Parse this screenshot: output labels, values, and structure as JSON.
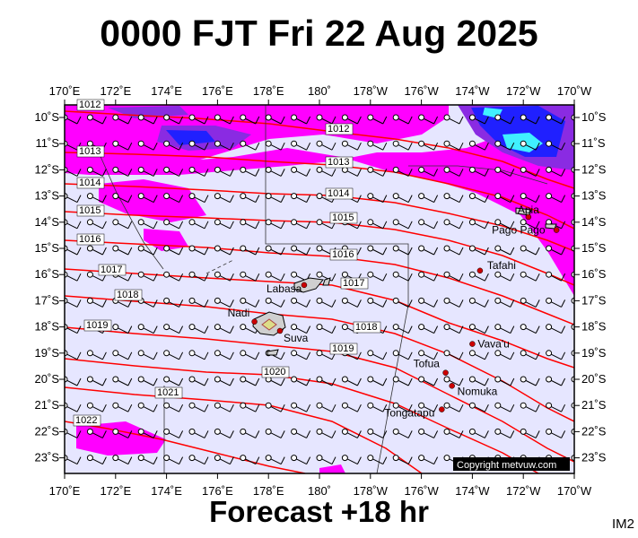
{
  "header": {
    "title": "0000 FJT Fri 22 Aug 2025"
  },
  "footer": {
    "forecast": "Forecast +18 hr",
    "tag": "IM2"
  },
  "axes": {
    "lon_labels": [
      "170˚E",
      "172˚E",
      "174˚E",
      "176˚E",
      "178˚E",
      "180˚",
      "178˚W",
      "176˚W",
      "174˚W",
      "172˚W",
      "170˚W"
    ],
    "lat_labels": [
      "10˚S",
      "11˚S",
      "12˚S",
      "13˚S",
      "14˚S",
      "15˚S",
      "16˚S",
      "17˚S",
      "18˚S",
      "19˚S",
      "20˚S",
      "21˚S",
      "22˚S",
      "23˚S"
    ]
  },
  "isobar_labels": [
    "1012",
    "1013",
    "1014",
    "1015",
    "1016",
    "1017",
    "1018",
    "1019",
    "1020",
    "1021",
    "1022"
  ],
  "cities": [
    {
      "name": "Apia",
      "lon": -171.8,
      "lat": -13.8
    },
    {
      "name": "Pago Pago",
      "lon": -170.7,
      "lat": -14.3
    },
    {
      "name": "Tafahi",
      "lon": -173.7,
      "lat": -15.85
    },
    {
      "name": "Labasa",
      "lon": 179.4,
      "lat": -16.4
    },
    {
      "name": "Nadi",
      "lon": 177.45,
      "lat": -17.8
    },
    {
      "name": "Suva",
      "lon": 178.45,
      "lat": -18.15
    },
    {
      "name": "Vava'u",
      "lon": -174.0,
      "lat": -18.65
    },
    {
      "name": "Tofua",
      "lon": -175.05,
      "lat": -19.75
    },
    {
      "name": "Nomuka",
      "lon": -174.8,
      "lat": -20.25
    },
    {
      "name": "Tongatapu",
      "lon": -175.2,
      "lat": -21.15
    }
  ],
  "copyright": "Copyright metvuw.com",
  "colors": {
    "sea": "#e6e6ff",
    "rain_light": "#ff00ff",
    "rain_mid": "#8a2be2",
    "rain_heavy": "#2020ff",
    "rain_extreme": "#40f0ff",
    "isobar": "#ff0000",
    "city_dot": "#cc0000"
  }
}
